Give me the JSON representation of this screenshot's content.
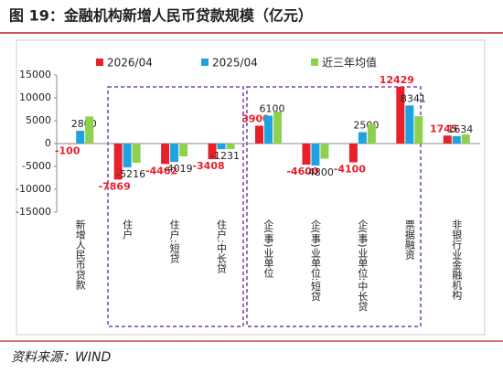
{
  "chart_data": {
    "type": "bar",
    "title": "图 19：金融机构新增人民币贷款规模（亿元）",
    "source": "资料来源：WIND",
    "categories": [
      "新增人民币贷款",
      "住户",
      "住户:短贷",
      "住户:中长贷",
      "企(事)业单位",
      "企(事)业单位:短贷",
      "企(事)业单位:中长贷",
      "票据融资",
      "非银行业金融机构"
    ],
    "series": [
      {
        "name": "2026/04",
        "color": "#e8202a",
        "values": [
          -100,
          -7869,
          -4462,
          -3408,
          3900,
          -4600,
          -4100,
          12429,
          1745
        ]
      },
      {
        "name": "2025/04",
        "color": "#1fa3e0",
        "values": [
          2800,
          -5216,
          -4019,
          -1231,
          6100,
          -4800,
          2500,
          8341,
          1634
        ]
      },
      {
        "name": "近三年均值",
        "color": "#8fd14f",
        "values": [
          5900,
          -4200,
          -2800,
          -1200,
          7000,
          -3300,
          4300,
          6000,
          2000
        ]
      }
    ],
    "ylim": [
      -15000,
      15000
    ],
    "yticks": [
      -15000,
      -10000,
      -5000,
      0,
      5000,
      10000,
      15000
    ]
  }
}
